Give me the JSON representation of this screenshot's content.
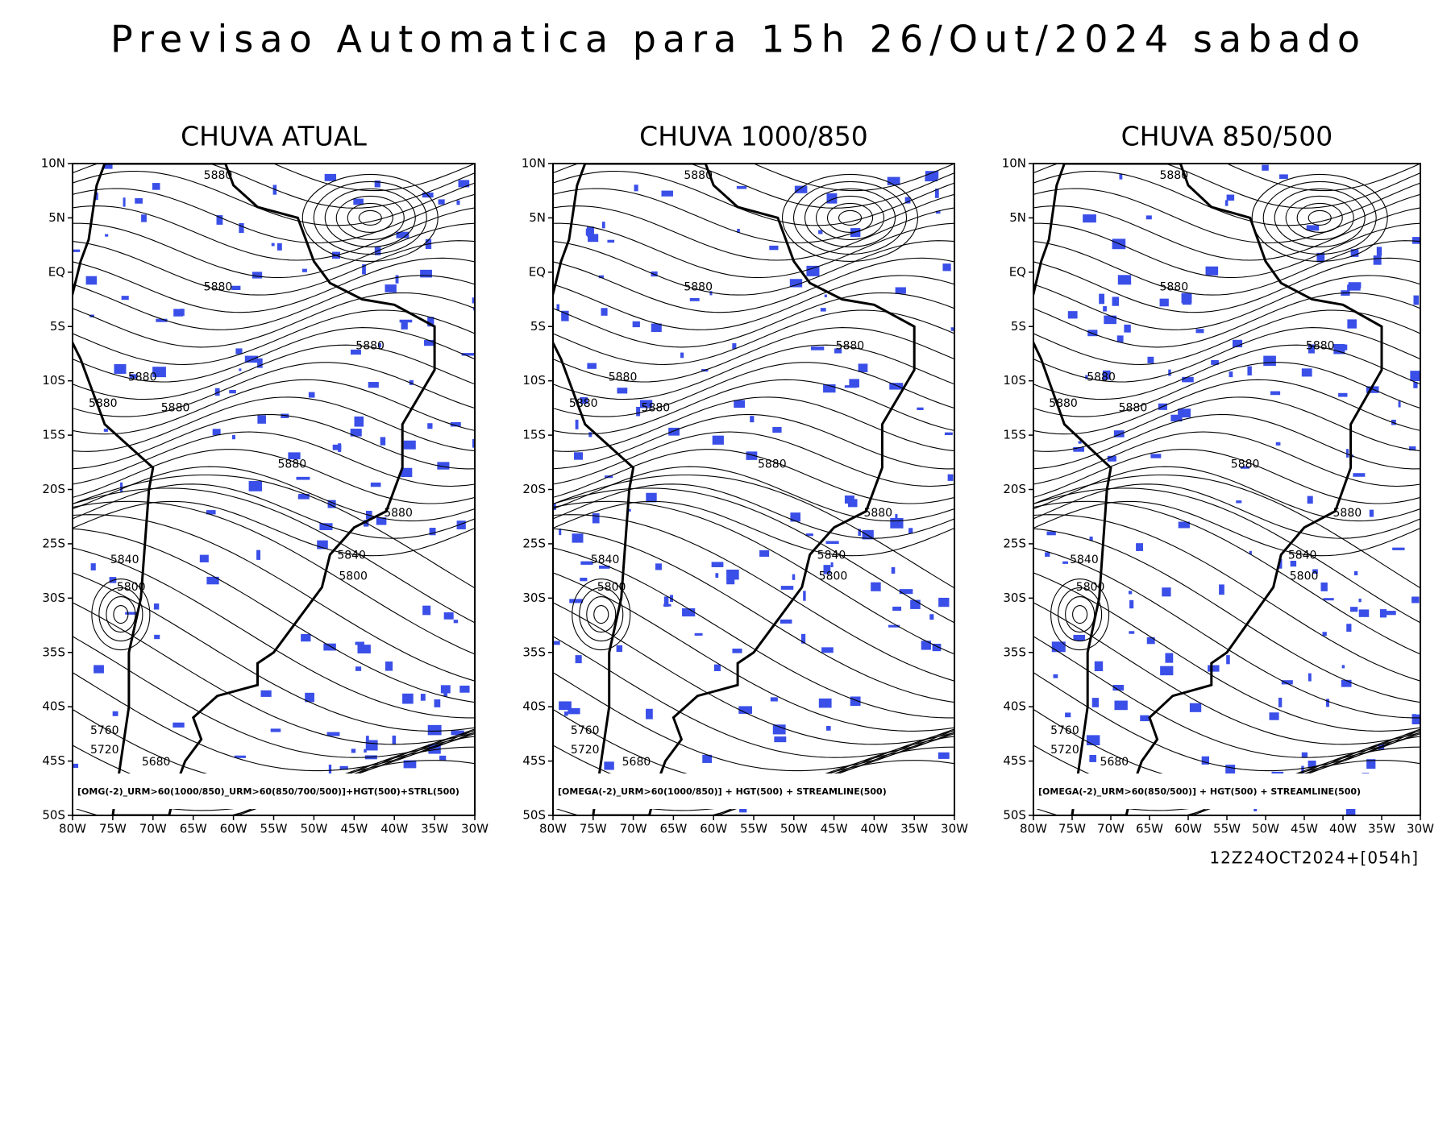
{
  "title": "Previsao Automatica para 15h 26/Out/2024 sabado",
  "lat_labels": [
    "10N",
    "5N",
    "EQ",
    "5S",
    "10S",
    "15S",
    "20S",
    "25S",
    "30S",
    "35S",
    "40S",
    "45S",
    "50S"
  ],
  "lon_labels": [
    "80W",
    "75W",
    "70W",
    "65W",
    "60W",
    "55W",
    "50W",
    "45W",
    "40W",
    "35W",
    "30W"
  ],
  "panels": [
    {
      "title": "CHUVA ATUAL",
      "caption": "[OMG(-2)_URM>60(1000/850)_URM>60(850/700/500)]+HGT(500)+STRL(500)",
      "contour_labels": [
        "5880",
        "5880",
        "5880",
        "5880",
        "5880",
        "5880",
        "5880",
        "5880",
        "5840",
        "5800",
        "5840",
        "5800",
        "5760",
        "5720",
        "5680"
      ]
    },
    {
      "title": "CHUVA 1000/850",
      "caption": "[OMEGA(-2)_URM>60(1000/850)] + HGT(500) + STREAMLINE(500)",
      "contour_labels": [
        "5880",
        "5880",
        "5880",
        "5880",
        "5880",
        "5880",
        "5880",
        "5880",
        "5840",
        "5800",
        "5840",
        "5800",
        "5760",
        "5720",
        "5680"
      ]
    },
    {
      "title": "CHUVA 850/500",
      "caption": "[OMEGA(-2)_URM>60(850/500)] + HGT(500) + STREAMLINE(500)",
      "contour_labels": [
        "5880",
        "5880",
        "5880",
        "5880",
        "5880",
        "5880",
        "5880",
        "5880",
        "5840",
        "5800",
        "5840",
        "5800",
        "5760",
        "5720",
        "5680"
      ]
    }
  ],
  "footer": "12Z24OCT2024+[054h]"
}
